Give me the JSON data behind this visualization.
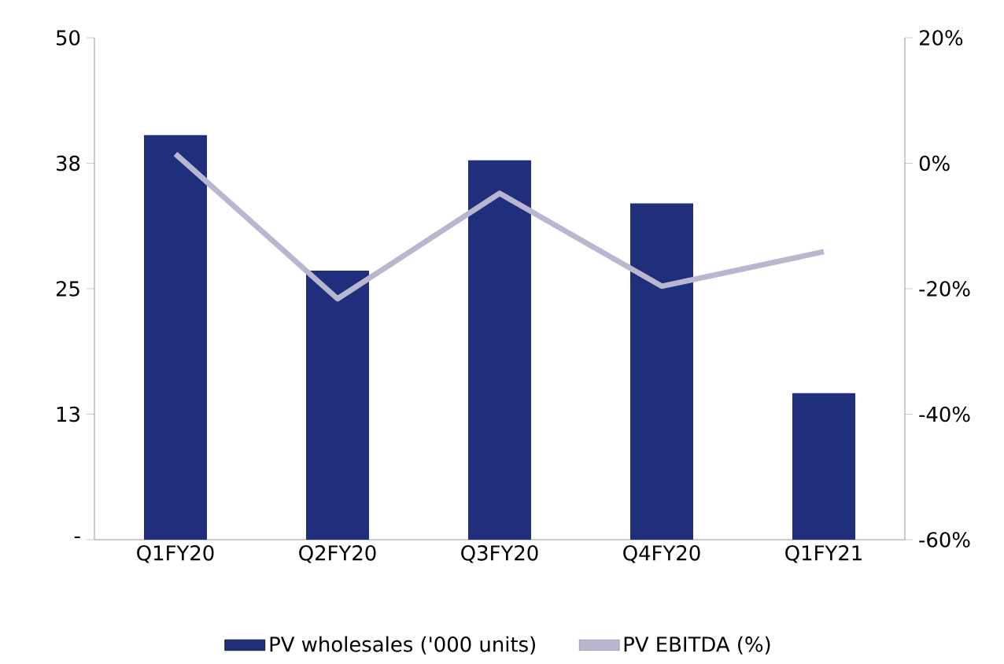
{
  "chart_data": {
    "type": "bar",
    "categories": [
      "Q1FY20",
      "Q2FY20",
      "Q3FY20",
      "Q4FY20",
      "Q1FY21"
    ],
    "series": [
      {
        "name": "PV wholesales ('000 units)",
        "color": "#1f2f7c",
        "values": [
          40.3,
          26.8,
          37.8,
          33.5,
          14.6
        ]
      },
      {
        "name": "PV EBITDA (%)",
        "type": "line",
        "axis": "y2",
        "color": "#b8b7cf",
        "values": [
          1.5,
          -21.6,
          -4.8,
          -19.6,
          -14.1
        ]
      }
    ],
    "ylim": [
      0,
      50
    ],
    "yticks": [
      {
        "value": 0,
        "label": "-"
      },
      {
        "value": 12.5,
        "label": "13"
      },
      25,
      {
        "value": 37.5,
        "label": "38"
      },
      50
    ],
    "y2lim": [
      -60,
      20
    ],
    "y2ticks": [
      {
        "value": -60,
        "label": "-60%"
      },
      {
        "value": -40,
        "label": "-40%"
      },
      {
        "value": -20,
        "label": "-20%"
      },
      {
        "value": 0,
        "label": "0%"
      },
      {
        "value": 20,
        "label": "20%"
      }
    ],
    "legend": "bottom",
    "grid": false
  }
}
